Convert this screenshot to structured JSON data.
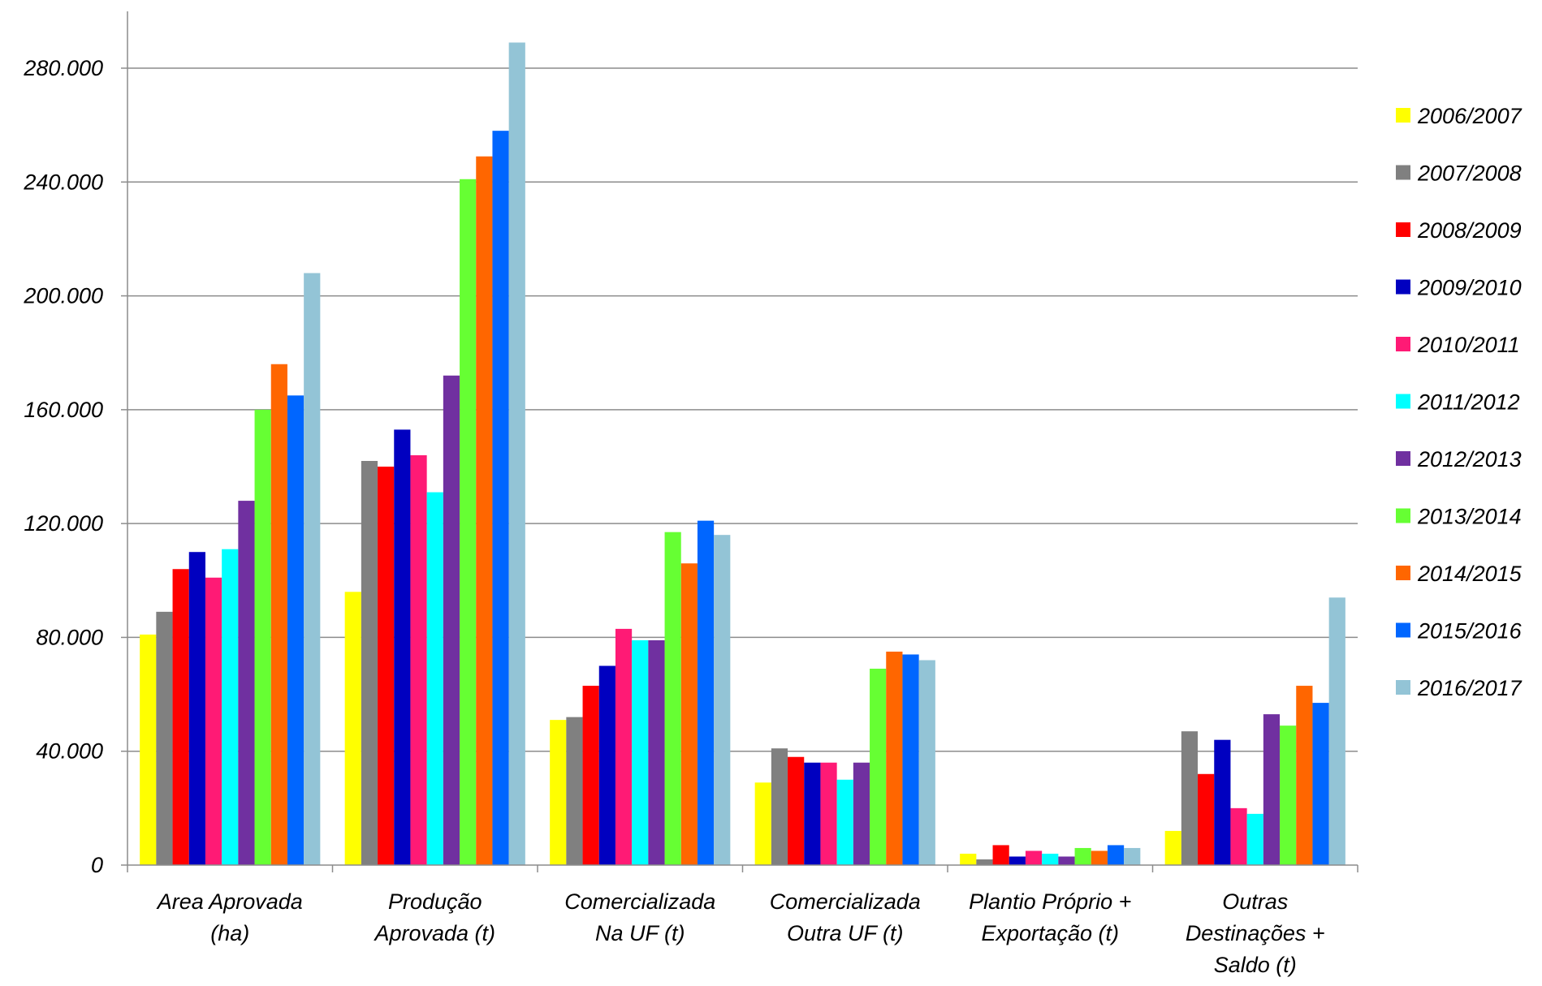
{
  "chart_data": {
    "type": "bar",
    "title": "",
    "xlabel": "",
    "ylabel": "",
    "ylim": [
      0,
      280000
    ],
    "yticks": [
      0,
      40000,
      80000,
      120000,
      160000,
      200000,
      240000,
      280000
    ],
    "ytick_labels": [
      "0",
      "40.000",
      "80.000",
      "120.000",
      "160.000",
      "200.000",
      "240.000",
      "280.000"
    ],
    "grid": "horizontal",
    "legend_position": "right",
    "categories": [
      [
        "Area Aprovada",
        "(ha)"
      ],
      [
        "Produção",
        "Aprovada (t)"
      ],
      [
        "Comercializada",
        "Na UF (t)"
      ],
      [
        "Comercializada",
        "Outra UF (t)"
      ],
      [
        "Plantio Próprio  +",
        "Exportação (t)"
      ],
      [
        "Outras",
        "Destinações +",
        "Saldo (t)"
      ]
    ],
    "series": [
      {
        "name": "2006/2007",
        "color": "#ffff00",
        "values": [
          81000,
          96000,
          51000,
          29000,
          4000,
          12000
        ]
      },
      {
        "name": "2007/2008",
        "color": "#808080",
        "values": [
          89000,
          142000,
          52000,
          41000,
          2000,
          47000
        ]
      },
      {
        "name": "2008/2009",
        "color": "#ff0000",
        "values": [
          104000,
          140000,
          63000,
          38000,
          7000,
          32000
        ]
      },
      {
        "name": "2009/2010",
        "color": "#0000c0",
        "values": [
          110000,
          153000,
          70000,
          36000,
          3000,
          44000
        ]
      },
      {
        "name": "2010/2011",
        "color": "#ff1a75",
        "values": [
          101000,
          144000,
          83000,
          36000,
          5000,
          20000
        ]
      },
      {
        "name": "2011/2012",
        "color": "#00ffff",
        "values": [
          111000,
          131000,
          79000,
          30000,
          4000,
          18000
        ]
      },
      {
        "name": "2012/2013",
        "color": "#7030a0",
        "values": [
          128000,
          172000,
          79000,
          36000,
          3000,
          53000
        ]
      },
      {
        "name": "2013/2014",
        "color": "#66ff33",
        "values": [
          160000,
          241000,
          117000,
          69000,
          6000,
          49000
        ]
      },
      {
        "name": "2014/2015",
        "color": "#ff6600",
        "values": [
          176000,
          249000,
          106000,
          75000,
          5000,
          63000
        ]
      },
      {
        "name": "2015/2016",
        "color": "#0066ff",
        "values": [
          165000,
          258000,
          121000,
          74000,
          7000,
          57000
        ]
      },
      {
        "name": "2016/2017",
        "color": "#93c4d6",
        "values": [
          208000,
          289000,
          116000,
          72000,
          6000,
          94000
        ]
      }
    ]
  }
}
